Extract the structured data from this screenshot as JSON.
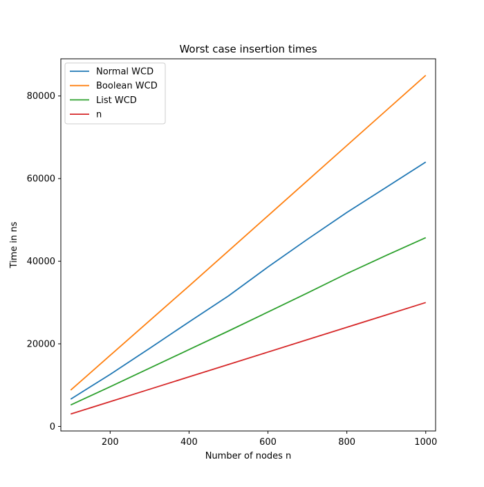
{
  "chart_data": {
    "type": "line",
    "title": "Worst case insertion times",
    "xlabel": "Number of nodes n",
    "ylabel": "Time in ns",
    "xlim": [
      75,
      1025
    ],
    "ylim": [
      -1100,
      89000
    ],
    "xticks": [
      200,
      400,
      600,
      800,
      1000
    ],
    "yticks": [
      0,
      20000,
      40000,
      60000,
      80000
    ],
    "grid": false,
    "legend_position": "upper-left",
    "x": [
      100,
      200,
      300,
      400,
      500,
      600,
      700,
      800,
      900,
      1000
    ],
    "series": [
      {
        "name": "Normal WCD",
        "color": "#1f77b4",
        "values": [
          6600,
          12600,
          18900,
          25300,
          31600,
          38600,
          45300,
          51800,
          57900,
          64000
        ]
      },
      {
        "name": "Boolean WCD",
        "color": "#ff7f0e",
        "values": [
          8800,
          17200,
          25600,
          34000,
          42500,
          51000,
          59500,
          68000,
          76500,
          85000
        ]
      },
      {
        "name": "List WCD",
        "color": "#2ca02c",
        "values": [
          5200,
          9600,
          14100,
          18600,
          23100,
          27700,
          32300,
          37000,
          41400,
          45700
        ]
      },
      {
        "name": "n",
        "color": "#d62728",
        "values": [
          3000,
          6000,
          9000,
          12000,
          15000,
          18000,
          21000,
          24000,
          27000,
          30000
        ]
      }
    ]
  }
}
